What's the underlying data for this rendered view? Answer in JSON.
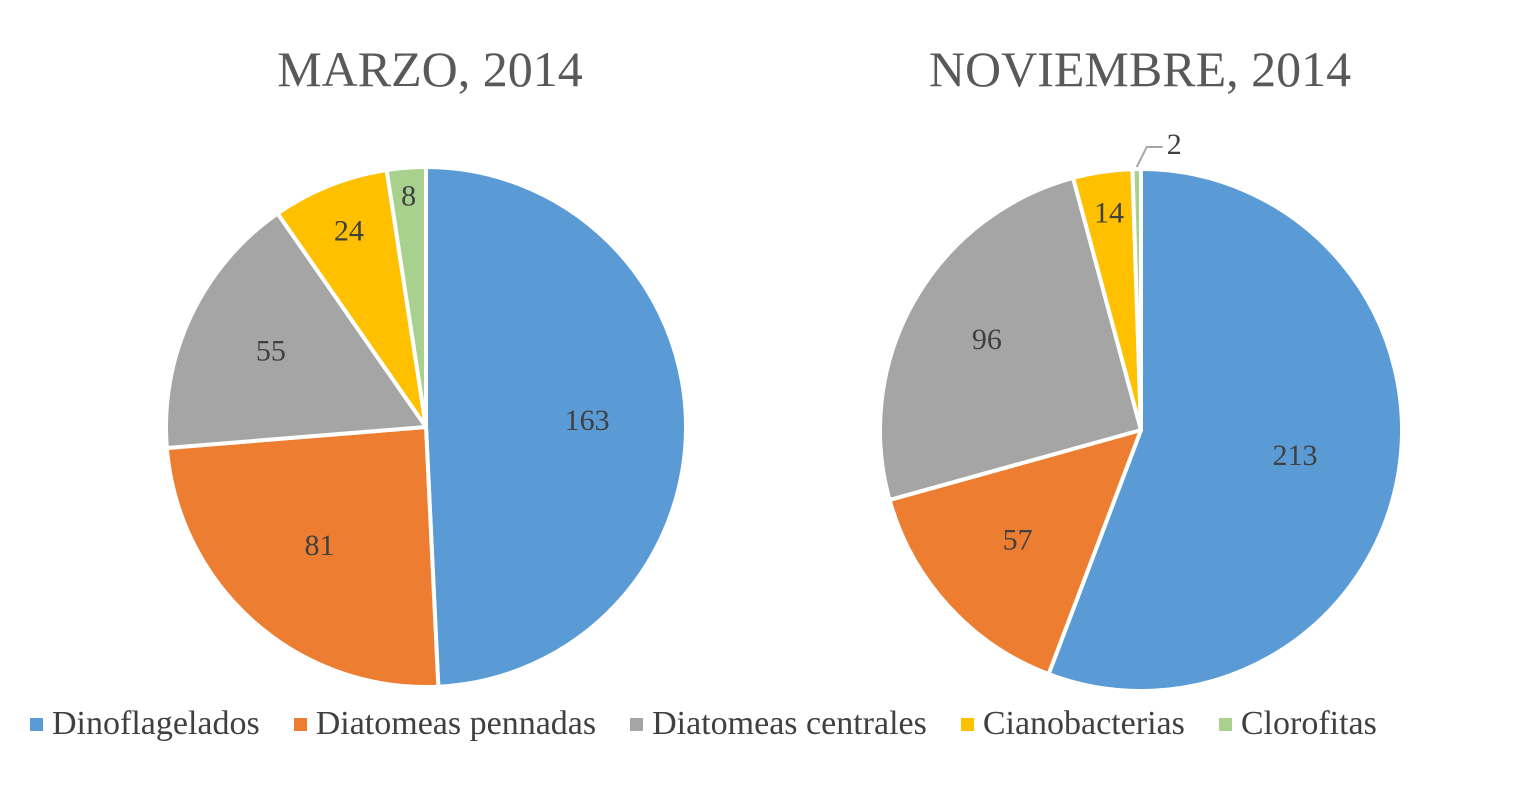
{
  "chart_data": [
    {
      "type": "pie",
      "title": "MARZO, 2014",
      "categories": [
        "Dinoflagelados",
        "Diatomeas pennadas",
        "Diatomeas centrales",
        "Cianobacterias",
        "Clorofitas"
      ],
      "values": [
        163,
        81,
        55,
        24,
        8
      ],
      "data_labels": [
        "163",
        "81",
        "55",
        "24",
        "8"
      ]
    },
    {
      "type": "pie",
      "title": "NOVIEMBRE, 2014",
      "categories": [
        "Dinoflagelados",
        "Diatomeas pennadas",
        "Diatomeas centrales",
        "Cianobacterias",
        "Clorofitas"
      ],
      "values": [
        213,
        57,
        96,
        14,
        2
      ],
      "data_labels": [
        "213",
        "57",
        "96",
        "14",
        "2"
      ]
    }
  ],
  "legend": {
    "placement": "bottom",
    "items": [
      {
        "label": "Dinoflagelados",
        "color": "#5B9BD5"
      },
      {
        "label": "Diatomeas pennadas",
        "color": "#ED7D31"
      },
      {
        "label": "Diatomeas centrales",
        "color": "#A5A5A5"
      },
      {
        "label": "Cianobacterias",
        "color": "#FFC000"
      },
      {
        "label": "Clorofitas",
        "color": "#A9D18E"
      }
    ]
  }
}
